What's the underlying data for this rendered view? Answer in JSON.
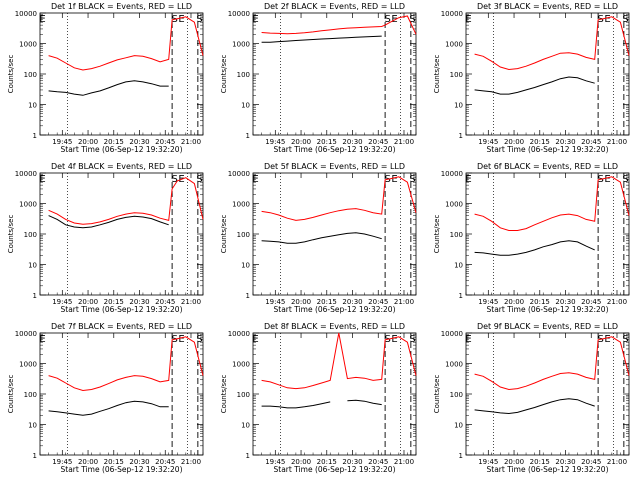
{
  "shared": {
    "xlabel": "Start Time (06-Sep-12 19:32:20)",
    "ylabel": "Counts/sec",
    "xticks": [
      "19:45",
      "20:00",
      "20:15",
      "20:30",
      "20:45",
      "21:00"
    ],
    "ytick_labels": [
      "1",
      "10",
      "100",
      "1000",
      "10000"
    ],
    "marker_E": "E",
    "marker_S": "S",
    "colors": {
      "events": "#000000",
      "lld": "#ff0000"
    }
  },
  "chart_data": [
    {
      "type": "line",
      "title": "Det 1f BLACK = Events, RED = LLD",
      "xlabel": "Start Time (06-Sep-12 19:32:20)",
      "ylabel": "Counts/sec",
      "yscale": "log",
      "ylim": [
        1,
        10000
      ],
      "xlim_minutes": [
        0,
        95
      ],
      "x": [
        5,
        10,
        15,
        20,
        25,
        30,
        35,
        40,
        45,
        50,
        55,
        60,
        65,
        70,
        75,
        77,
        80,
        85,
        90,
        95
      ],
      "series": [
        {
          "name": "LLD",
          "color": "#ff0000",
          "values": [
            400,
            330,
            230,
            160,
            135,
            150,
            180,
            230,
            290,
            340,
            400,
            380,
            320,
            250,
            300,
            6000,
            6500,
            7500,
            5000,
            400
          ]
        },
        {
          "name": "Events",
          "color": "#000000",
          "values": [
            28,
            26,
            25,
            22,
            20,
            24,
            28,
            35,
            45,
            55,
            60,
            55,
            48,
            40,
            40,
            null,
            null,
            null,
            null,
            null
          ]
        }
      ]
    },
    {
      "type": "line",
      "title": "Det 2f BLACK = Events, RED = LLD",
      "xlabel": "Start Time (06-Sep-12 19:32:20)",
      "ylabel": "Counts/sec",
      "yscale": "log",
      "ylim": [
        1,
        10000
      ],
      "xlim_minutes": [
        0,
        95
      ],
      "x": [
        5,
        10,
        15,
        20,
        25,
        30,
        35,
        40,
        45,
        50,
        55,
        60,
        65,
        70,
        75,
        77,
        80,
        85,
        90,
        95
      ],
      "series": [
        {
          "name": "LLD",
          "color": "#ff0000",
          "values": [
            2300,
            2200,
            2150,
            2100,
            2150,
            2250,
            2400,
            2600,
            2800,
            3000,
            3200,
            3300,
            3400,
            3500,
            3600,
            4000,
            5000,
            7000,
            8000,
            2000
          ]
        },
        {
          "name": "Events",
          "color": "#000000",
          "values": [
            1100,
            1100,
            1150,
            1200,
            1250,
            1300,
            1350,
            1400,
            1450,
            1500,
            1550,
            1600,
            1650,
            1700,
            1750,
            null,
            null,
            null,
            null,
            null
          ]
        }
      ]
    },
    {
      "type": "line",
      "title": "Det 3f BLACK = Events, RED = LLD",
      "xlabel": "Start Time (06-Sep-12 19:32:20)",
      "ylabel": "Counts/sec",
      "yscale": "log",
      "ylim": [
        1,
        10000
      ],
      "xlim_minutes": [
        0,
        95
      ],
      "x": [
        5,
        10,
        15,
        20,
        25,
        30,
        35,
        40,
        45,
        50,
        55,
        60,
        65,
        70,
        75,
        77,
        80,
        85,
        90,
        95
      ],
      "series": [
        {
          "name": "LLD",
          "color": "#ff0000",
          "values": [
            450,
            380,
            260,
            170,
            140,
            150,
            180,
            230,
            300,
            380,
            480,
            500,
            450,
            350,
            300,
            6000,
            6500,
            7500,
            5000,
            400
          ]
        },
        {
          "name": "Events",
          "color": "#000000",
          "values": [
            30,
            28,
            26,
            22,
            22,
            25,
            30,
            36,
            45,
            55,
            70,
            80,
            75,
            60,
            50,
            null,
            null,
            null,
            null,
            null
          ]
        }
      ]
    },
    {
      "type": "line",
      "title": "Det 4f BLACK = Events, RED = LLD",
      "xlabel": "Start Time (06-Sep-12 19:32:20)",
      "ylabel": "Counts/sec",
      "yscale": "log",
      "ylim": [
        1,
        10000
      ],
      "xlim_minutes": [
        0,
        95
      ],
      "x": [
        5,
        10,
        15,
        20,
        25,
        30,
        35,
        40,
        45,
        50,
        55,
        60,
        65,
        70,
        75,
        77,
        80,
        85,
        90,
        95
      ],
      "series": [
        {
          "name": "LLD",
          "color": "#ff0000",
          "values": [
            600,
            450,
            300,
            230,
            210,
            220,
            250,
            300,
            380,
            450,
            500,
            480,
            420,
            330,
            280,
            3000,
            5500,
            7000,
            4500,
            300
          ]
        },
        {
          "name": "Events",
          "color": "#000000",
          "values": [
            400,
            300,
            200,
            170,
            160,
            170,
            200,
            240,
            300,
            350,
            380,
            360,
            320,
            250,
            200,
            null,
            null,
            null,
            null,
            null
          ]
        }
      ]
    },
    {
      "type": "line",
      "title": "Det 5f BLACK = Events, RED = LLD",
      "xlabel": "Start Time (06-Sep-12 19:32:20)",
      "ylabel": "Counts/sec",
      "yscale": "log",
      "ylim": [
        1,
        10000
      ],
      "xlim_minutes": [
        0,
        95
      ],
      "x": [
        5,
        10,
        15,
        20,
        25,
        30,
        35,
        40,
        45,
        50,
        55,
        60,
        65,
        70,
        75,
        77,
        80,
        85,
        90,
        95
      ],
      "series": [
        {
          "name": "LLD",
          "color": "#ff0000",
          "values": [
            550,
            500,
            420,
            330,
            280,
            300,
            350,
            420,
            500,
            580,
            650,
            680,
            600,
            500,
            450,
            6000,
            6500,
            7500,
            5000,
            500
          ]
        },
        {
          "name": "Events",
          "color": "#000000",
          "values": [
            60,
            58,
            55,
            50,
            50,
            55,
            65,
            75,
            85,
            95,
            105,
            110,
            100,
            85,
            70,
            null,
            null,
            null,
            null,
            null
          ]
        }
      ]
    },
    {
      "type": "line",
      "title": "Det 6f BLACK = Events, RED = LLD",
      "xlabel": "Start Time (06-Sep-12 19:32:20)",
      "ylabel": "Counts/sec",
      "yscale": "log",
      "ylim": [
        1,
        10000
      ],
      "xlim_minutes": [
        0,
        95
      ],
      "x": [
        5,
        10,
        15,
        20,
        25,
        30,
        35,
        40,
        45,
        50,
        55,
        60,
        65,
        70,
        75,
        77,
        80,
        85,
        90,
        95
      ],
      "series": [
        {
          "name": "LLD",
          "color": "#ff0000",
          "values": [
            450,
            380,
            260,
            160,
            130,
            130,
            150,
            200,
            260,
            340,
            420,
            450,
            400,
            300,
            260,
            6000,
            6500,
            7500,
            5000,
            400
          ]
        },
        {
          "name": "Events",
          "color": "#000000",
          "values": [
            25,
            24,
            22,
            20,
            20,
            22,
            25,
            30,
            38,
            45,
            55,
            60,
            55,
            40,
            30,
            null,
            null,
            null,
            null,
            null
          ]
        }
      ]
    },
    {
      "type": "line",
      "title": "Det 7f BLACK = Events, RED = LLD",
      "xlabel": "Start Time (06-Sep-12 19:32:20)",
      "ylabel": "Counts/sec",
      "yscale": "log",
      "ylim": [
        1,
        10000
      ],
      "xlim_minutes": [
        0,
        95
      ],
      "x": [
        5,
        10,
        15,
        20,
        25,
        30,
        35,
        40,
        45,
        50,
        55,
        60,
        65,
        70,
        75,
        77,
        80,
        85,
        90,
        95
      ],
      "series": [
        {
          "name": "LLD",
          "color": "#ff0000",
          "values": [
            400,
            330,
            230,
            160,
            130,
            140,
            170,
            220,
            290,
            350,
            400,
            380,
            320,
            250,
            280,
            6000,
            6500,
            7500,
            5000,
            400
          ]
        },
        {
          "name": "Events",
          "color": "#000000",
          "values": [
            28,
            26,
            24,
            22,
            20,
            22,
            27,
            33,
            42,
            52,
            58,
            55,
            48,
            38,
            38,
            null,
            null,
            null,
            null,
            null
          ]
        }
      ]
    },
    {
      "type": "line",
      "title": "Det 8f BLACK = Events, RED = LLD",
      "xlabel": "Start Time (06-Sep-12 19:32:20)",
      "ylabel": "Counts/sec",
      "yscale": "log",
      "ylim": [
        1,
        10000
      ],
      "xlim_minutes": [
        0,
        95
      ],
      "x": [
        5,
        10,
        15,
        20,
        25,
        30,
        35,
        40,
        45,
        50,
        55,
        60,
        65,
        70,
        75,
        77,
        80,
        85,
        90,
        95
      ],
      "series": [
        {
          "name": "LLD",
          "color": "#ff0000",
          "values": [
            280,
            250,
            200,
            160,
            150,
            160,
            190,
            230,
            280,
            10000,
            320,
            350,
            330,
            280,
            300,
            6000,
            6500,
            7500,
            5000,
            400
          ]
        },
        {
          "name": "Events",
          "color": "#000000",
          "values": [
            40,
            40,
            38,
            35,
            35,
            38,
            42,
            48,
            55,
            null,
            60,
            62,
            58,
            50,
            45,
            null,
            null,
            null,
            null,
            null
          ]
        }
      ]
    },
    {
      "type": "line",
      "title": "Det 9f BLACK = Events, RED = LLD",
      "xlabel": "Start Time (06-Sep-12 19:32:20)",
      "ylabel": "Counts/sec",
      "yscale": "log",
      "ylim": [
        1,
        10000
      ],
      "xlim_minutes": [
        0,
        95
      ],
      "x": [
        5,
        10,
        15,
        20,
        25,
        30,
        35,
        40,
        45,
        50,
        55,
        60,
        65,
        70,
        75,
        77,
        80,
        85,
        90,
        95
      ],
      "series": [
        {
          "name": "LLD",
          "color": "#ff0000",
          "values": [
            450,
            380,
            260,
            170,
            140,
            150,
            180,
            230,
            300,
            380,
            470,
            500,
            450,
            350,
            300,
            6000,
            6500,
            7500,
            5000,
            400
          ]
        },
        {
          "name": "Events",
          "color": "#000000",
          "values": [
            30,
            28,
            26,
            24,
            23,
            25,
            30,
            36,
            45,
            55,
            65,
            70,
            65,
            50,
            40,
            null,
            null,
            null,
            null,
            null
          ]
        }
      ]
    }
  ]
}
